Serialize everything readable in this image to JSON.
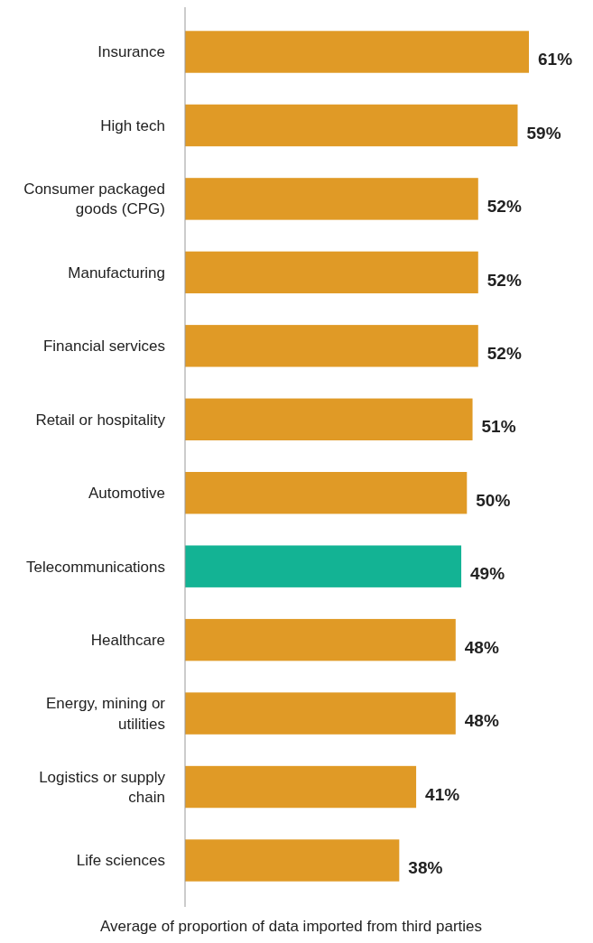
{
  "chart_data": {
    "type": "bar",
    "orientation": "horizontal",
    "xlabel": "Average of proportion of data imported from third parties",
    "categories": [
      "Insurance",
      "High tech",
      "Consumer packaged goods (CPG)",
      "Manufacturing",
      "Financial services",
      "Retail or hospitality",
      "Automotive",
      "Telecommunications",
      "Healthcare",
      "Energy, mining or utilities",
      "Logistics or supply chain",
      "Life sciences"
    ],
    "values": [
      61,
      59,
      52,
      52,
      52,
      51,
      50,
      49,
      48,
      48,
      41,
      38
    ],
    "colors": [
      "#e09a26",
      "#e09a26",
      "#e09a26",
      "#e09a26",
      "#e09a26",
      "#e09a26",
      "#e09a26",
      "#13b394",
      "#e09a26",
      "#e09a26",
      "#e09a26",
      "#e09a26"
    ],
    "value_labels": [
      "61%",
      "59%",
      "52%",
      "52%",
      "52%",
      "51%",
      "50%",
      "49%",
      "48%",
      "48%",
      "41%",
      "38%"
    ],
    "tick_labels": "y"
  }
}
